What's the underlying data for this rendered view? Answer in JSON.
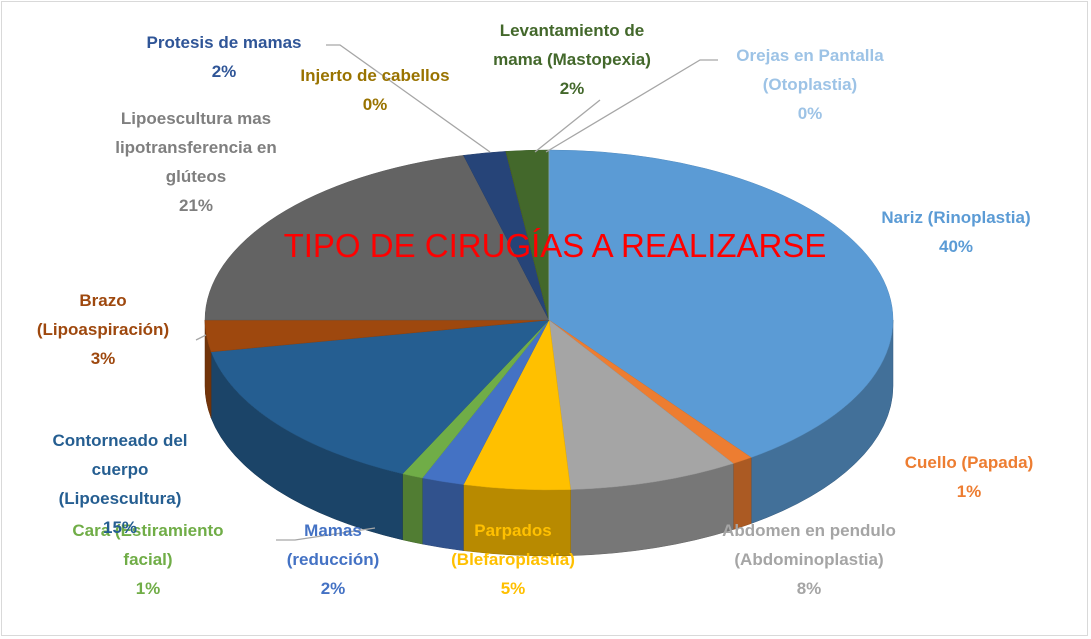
{
  "chart_data": {
    "type": "pie",
    "title": "TIPO DE CIRUGÍAS A REALIZARSE",
    "categories": [
      "Nariz (Rinoplastia)",
      "Cuello (Papada)",
      "Abdomen en pendulo (Abdominoplastia)",
      "Parpados (Blefaroplastia)",
      "Mamas (reducción)",
      "Cara (Estiramiento facial)",
      "Contorneado del cuerpo (Lipoescultura)",
      "Brazo (Lipoaspiración)",
      "Lipoescultura mas lipotransferencia en glúteos",
      "Protesis de mamas",
      "Injerto de cabellos",
      "Levantamiento de mama (Mastopexia)",
      "Orejas en Pantalla (Otoplastia)"
    ],
    "values": [
      40,
      1,
      8,
      5,
      2,
      1,
      15,
      3,
      21,
      2,
      0,
      2,
      0
    ],
    "value_labels": [
      "40%",
      "1%",
      "8%",
      "5%",
      "2%",
      "1%",
      "15%",
      "3%",
      "21%",
      "2%",
      "0%",
      "2%",
      "0%"
    ],
    "colors": [
      "#5b9bd5",
      "#ed7d31",
      "#a5a5a5",
      "#ffc000",
      "#4472c4",
      "#70ad47",
      "#255e91",
      "#9e480e",
      "#636363",
      "#264478",
      "#997300",
      "#43682b",
      "#9dc3e6"
    ]
  }
}
